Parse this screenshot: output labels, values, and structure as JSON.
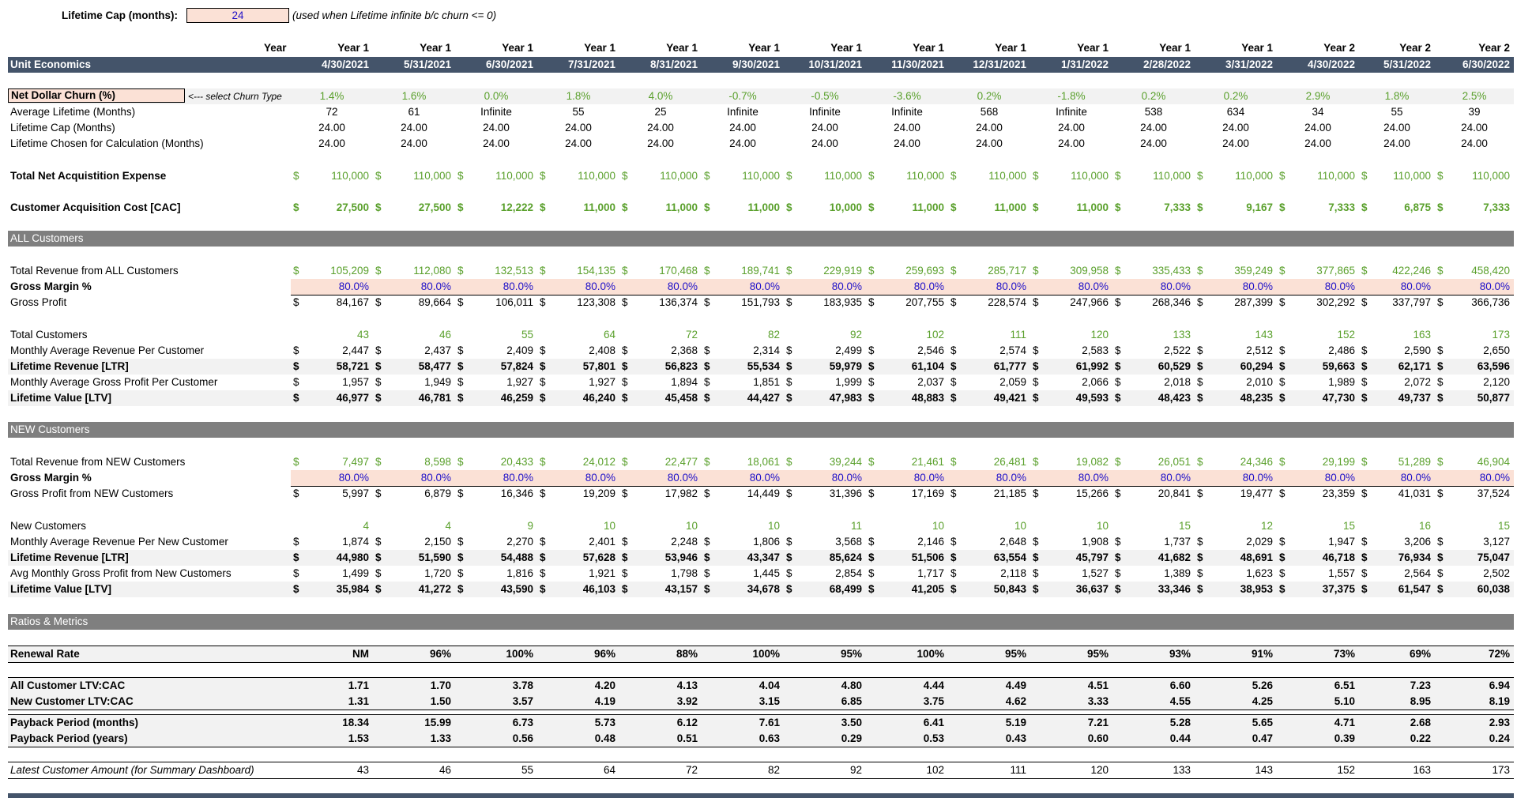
{
  "top": {
    "lifetime_cap_label": "Lifetime Cap (months):",
    "lifetime_cap_value": "24",
    "lifetime_cap_note": "(used when Lifetime infinite b/c churn <= 0)"
  },
  "header": {
    "year_label": "Year",
    "unit_economics_label": "Unit Economics",
    "years": [
      "Year 1",
      "Year 1",
      "Year 1",
      "Year 1",
      "Year 1",
      "Year 1",
      "Year 1",
      "Year 1",
      "Year 1",
      "Year 1",
      "Year 1",
      "Year 1",
      "Year 2",
      "Year 2",
      "Year 2"
    ],
    "dates": [
      "4/30/2021",
      "5/31/2021",
      "6/30/2021",
      "7/31/2021",
      "8/31/2021",
      "9/30/2021",
      "10/31/2021",
      "11/30/2021",
      "12/31/2021",
      "1/31/2022",
      "2/28/2022",
      "3/31/2022",
      "4/30/2022",
      "5/31/2022",
      "6/30/2022"
    ]
  },
  "churn": {
    "label": "Net Dollar Churn (%)",
    "select_note": "<--- select Churn Type",
    "values": [
      "1.4%",
      "1.6%",
      "0.0%",
      "1.8%",
      "4.0%",
      "-0.7%",
      "-0.5%",
      "-3.6%",
      "0.2%",
      "-1.8%",
      "0.2%",
      "0.2%",
      "2.9%",
      "1.8%",
      "2.5%"
    ]
  },
  "lifetime": {
    "avg_label": "Average Lifetime (Months)",
    "avg_values": [
      "72",
      "61",
      "Infinite",
      "55",
      "25",
      "Infinite",
      "Infinite",
      "Infinite",
      "568",
      "Infinite",
      "538",
      "634",
      "34",
      "55",
      "39"
    ],
    "cap_label": "Lifetime Cap (Months)",
    "cap_values": [
      "24.00",
      "24.00",
      "24.00",
      "24.00",
      "24.00",
      "24.00",
      "24.00",
      "24.00",
      "24.00",
      "24.00",
      "24.00",
      "24.00",
      "24.00",
      "24.00",
      "24.00"
    ],
    "chosen_label": "Lifetime Chosen for Calculation (Months)",
    "chosen_values": [
      "24.00",
      "24.00",
      "24.00",
      "24.00",
      "24.00",
      "24.00",
      "24.00",
      "24.00",
      "24.00",
      "24.00",
      "24.00",
      "24.00",
      "24.00",
      "24.00",
      "24.00"
    ]
  },
  "acquisition": {
    "expense_label": "Total Net Acquistition Expense",
    "expense_values": [
      "110,000",
      "110,000",
      "110,000",
      "110,000",
      "110,000",
      "110,000",
      "110,000",
      "110,000",
      "110,000",
      "110,000",
      "110,000",
      "110,000",
      "110,000",
      "110,000",
      "110,000"
    ],
    "cac_label": "Customer Acquisition Cost [CAC]",
    "cac_values": [
      "27,500",
      "27,500",
      "12,222",
      "11,000",
      "11,000",
      "11,000",
      "10,000",
      "11,000",
      "11,000",
      "11,000",
      "7,333",
      "9,167",
      "7,333",
      "6,875",
      "7,333"
    ]
  },
  "all_customers": {
    "title": "ALL Customers",
    "revenue_label": "Total Revenue from ALL Customers",
    "revenue_values": [
      "105,209",
      "112,080",
      "132,513",
      "154,135",
      "170,468",
      "189,741",
      "229,919",
      "259,693",
      "285,717",
      "309,958",
      "335,433",
      "359,249",
      "377,865",
      "422,246",
      "458,420"
    ],
    "gm_label": "Gross Margin %",
    "gm_values": [
      "80.0%",
      "80.0%",
      "80.0%",
      "80.0%",
      "80.0%",
      "80.0%",
      "80.0%",
      "80.0%",
      "80.0%",
      "80.0%",
      "80.0%",
      "80.0%",
      "80.0%",
      "80.0%",
      "80.0%"
    ],
    "gp_label": "Gross Profit",
    "gp_values": [
      "84,167",
      "89,664",
      "106,011",
      "123,308",
      "136,374",
      "151,793",
      "183,935",
      "207,755",
      "228,574",
      "247,966",
      "268,346",
      "287,399",
      "302,292",
      "337,797",
      "366,736"
    ],
    "total_label": "Total Customers",
    "total_values": [
      "43",
      "46",
      "55",
      "64",
      "72",
      "82",
      "92",
      "102",
      "111",
      "120",
      "133",
      "143",
      "152",
      "163",
      "173"
    ],
    "marpc_label": "Monthly Average Revenue Per Customer",
    "marpc_values": [
      "2,447",
      "2,437",
      "2,409",
      "2,408",
      "2,368",
      "2,314",
      "2,499",
      "2,546",
      "2,574",
      "2,583",
      "2,522",
      "2,512",
      "2,486",
      "2,590",
      "2,650"
    ],
    "ltr_label": "Lifetime Revenue [LTR]",
    "ltr_values": [
      "58,721",
      "58,477",
      "57,824",
      "57,801",
      "56,823",
      "55,534",
      "59,979",
      "61,104",
      "61,777",
      "61,992",
      "60,529",
      "60,294",
      "59,663",
      "62,171",
      "63,596"
    ],
    "magp_label": "Monthly Average Gross Profit Per Customer",
    "magp_values": [
      "1,957",
      "1,949",
      "1,927",
      "1,927",
      "1,894",
      "1,851",
      "1,999",
      "2,037",
      "2,059",
      "2,066",
      "2,018",
      "2,010",
      "1,989",
      "2,072",
      "2,120"
    ],
    "ltv_label": "Lifetime Value [LTV]",
    "ltv_values": [
      "46,977",
      "46,781",
      "46,259",
      "46,240",
      "45,458",
      "44,427",
      "47,983",
      "48,883",
      "49,421",
      "49,593",
      "48,423",
      "48,235",
      "47,730",
      "49,737",
      "50,877"
    ]
  },
  "new_customers": {
    "title": "NEW Customers",
    "revenue_label": "Total Revenue from NEW Customers",
    "revenue_values": [
      "7,497",
      "8,598",
      "20,433",
      "24,012",
      "22,477",
      "18,061",
      "39,244",
      "21,461",
      "26,481",
      "19,082",
      "26,051",
      "24,346",
      "29,199",
      "51,289",
      "46,904"
    ],
    "gm_label": "Gross Margin %",
    "gm_values": [
      "80.0%",
      "80.0%",
      "80.0%",
      "80.0%",
      "80.0%",
      "80.0%",
      "80.0%",
      "80.0%",
      "80.0%",
      "80.0%",
      "80.0%",
      "80.0%",
      "80.0%",
      "80.0%",
      "80.0%"
    ],
    "gp_label": "Gross Profit from NEW Customers",
    "gp_values": [
      "5,997",
      "6,879",
      "16,346",
      "19,209",
      "17,982",
      "14,449",
      "31,396",
      "17,169",
      "21,185",
      "15,266",
      "20,841",
      "19,477",
      "23,359",
      "41,031",
      "37,524"
    ],
    "new_label": "New Customers",
    "new_values": [
      "4",
      "4",
      "9",
      "10",
      "10",
      "10",
      "11",
      "10",
      "10",
      "10",
      "15",
      "12",
      "15",
      "16",
      "15"
    ],
    "marpnc_label": "Monthly Average Revenue Per New Customer",
    "marpnc_values": [
      "1,874",
      "2,150",
      "2,270",
      "2,401",
      "2,248",
      "1,806",
      "3,568",
      "2,146",
      "2,648",
      "1,908",
      "1,737",
      "2,029",
      "1,947",
      "3,206",
      "3,127"
    ],
    "ltr_label": "Lifetime Revenue [LTR]",
    "ltr_values": [
      "44,980",
      "51,590",
      "54,488",
      "57,628",
      "53,946",
      "43,347",
      "85,624",
      "51,506",
      "63,554",
      "45,797",
      "41,682",
      "48,691",
      "46,718",
      "76,934",
      "75,047"
    ],
    "agp_label": "Avg Monthly Gross Profit from New Customers",
    "agp_values": [
      "1,499",
      "1,720",
      "1,816",
      "1,921",
      "1,798",
      "1,445",
      "2,854",
      "1,717",
      "2,118",
      "1,527",
      "1,389",
      "1,623",
      "1,557",
      "2,564",
      "2,502"
    ],
    "ltv_label": "Lifetime Value [LTV]",
    "ltv_values": [
      "35,984",
      "41,272",
      "43,590",
      "46,103",
      "43,157",
      "34,678",
      "68,499",
      "41,205",
      "50,843",
      "36,637",
      "33,346",
      "38,953",
      "37,375",
      "61,547",
      "60,038"
    ]
  },
  "ratios": {
    "title": "Ratios & Metrics",
    "renewal_label": "Renewal Rate",
    "renewal_values": [
      "NM",
      "96%",
      "100%",
      "96%",
      "88%",
      "100%",
      "95%",
      "100%",
      "95%",
      "95%",
      "93%",
      "91%",
      "73%",
      "69%",
      "72%"
    ],
    "all_ltv_cac_label": "All Customer LTV:CAC",
    "all_ltv_cac_values": [
      "1.71",
      "1.70",
      "3.78",
      "4.20",
      "4.13",
      "4.04",
      "4.80",
      "4.44",
      "4.49",
      "4.51",
      "6.60",
      "5.26",
      "6.51",
      "7.23",
      "6.94"
    ],
    "new_ltv_cac_label": "New Customer LTV:CAC",
    "new_ltv_cac_values": [
      "1.31",
      "1.50",
      "3.57",
      "4.19",
      "3.92",
      "3.15",
      "6.85",
      "3.75",
      "4.62",
      "3.33",
      "4.55",
      "4.25",
      "5.10",
      "8.95",
      "8.19"
    ],
    "payback_months_label": "Payback Period (months)",
    "payback_months_values": [
      "18.34",
      "15.99",
      "6.73",
      "5.73",
      "6.12",
      "7.61",
      "3.50",
      "6.41",
      "5.19",
      "7.21",
      "5.28",
      "5.65",
      "4.71",
      "2.68",
      "2.93"
    ],
    "payback_years_label": "Payback Period (years)",
    "payback_years_values": [
      "1.53",
      "1.33",
      "0.56",
      "0.48",
      "0.51",
      "0.63",
      "0.29",
      "0.53",
      "0.43",
      "0.60",
      "0.44",
      "0.47",
      "0.39",
      "0.22",
      "0.24"
    ],
    "latest_label": "Latest Customer Amount (for Summary Dashboard)",
    "latest_values": [
      "43",
      "46",
      "55",
      "64",
      "72",
      "82",
      "92",
      "102",
      "111",
      "120",
      "133",
      "143",
      "152",
      "163",
      "173"
    ]
  },
  "currency_symbol": "$"
}
